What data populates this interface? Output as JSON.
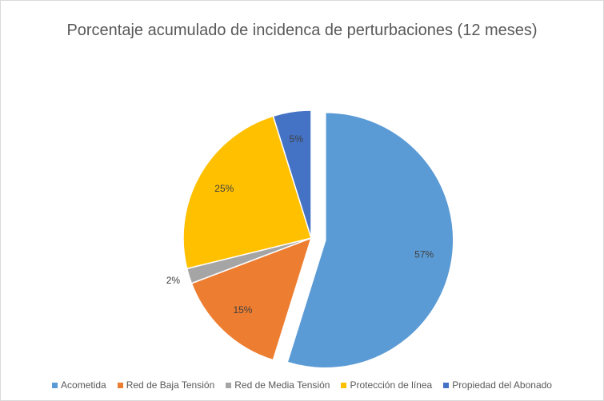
{
  "chart_data": {
    "type": "pie",
    "title": "Porcentaje acumulado de incidenca de perturbaciones (12 meses)",
    "categories": [
      "Acometida",
      "Red de Baja Tensión",
      "Red de Media Tensión",
      "Protección de línea",
      "Propiedad del Abonado"
    ],
    "values": [
      57,
      15,
      2,
      25,
      5
    ],
    "value_labels": [
      "57%",
      "15%",
      "2%",
      "25%",
      "5%"
    ],
    "colors": [
      "#5b9bd5",
      "#ed7d31",
      "#a5a5a5",
      "#ffc000",
      "#4472c4"
    ],
    "legend": "bottom"
  }
}
